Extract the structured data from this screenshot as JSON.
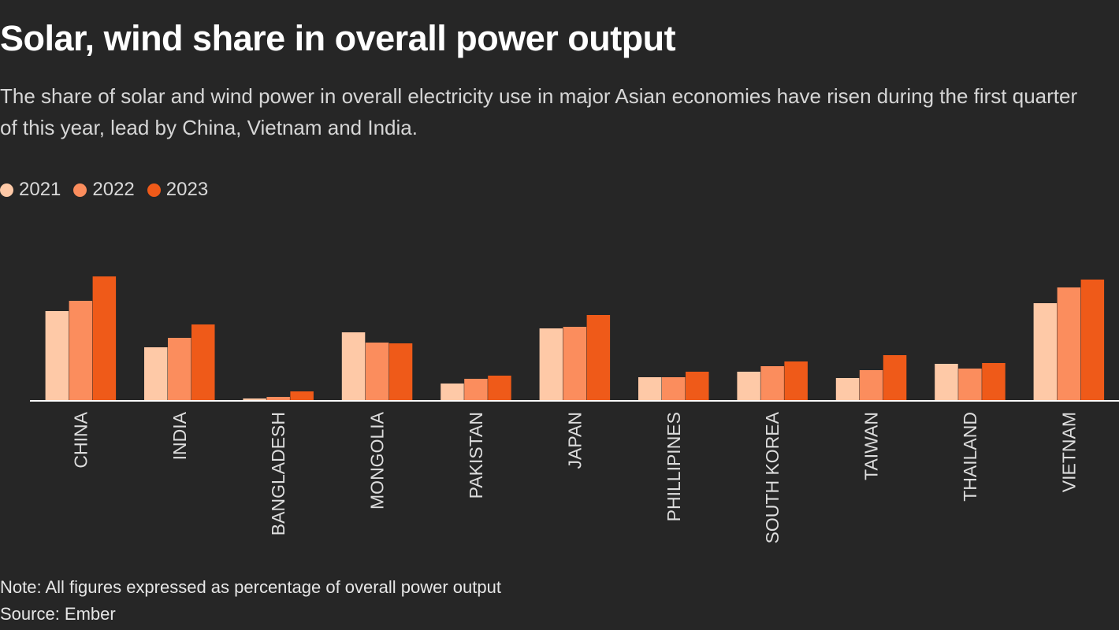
{
  "header": {
    "title": "Solar, wind share in overall power output",
    "subtitle": "The share of solar and wind power in overall electricity use in major Asian economies have risen during the first quarter of this year, lead by China, Vietnam and India."
  },
  "footer": {
    "note": "Note: All figures expressed as percentage of overall power output",
    "source": "Source: Ember"
  },
  "colors": {
    "background": "#262626",
    "2021": "#FEC9A7",
    "2022": "#FB8D5D",
    "2023": "#EF5A19",
    "axis": "#ffffff",
    "tick_label": "#dddddd"
  },
  "chart_data": {
    "type": "bar",
    "categories": [
      "CHINA",
      "INDIA",
      "BANGLADESH",
      "MONGOLIA",
      "PAKISTAN",
      "JAPAN",
      "PHILLIPINES",
      "SOUTH KOREA",
      "TAIWAN",
      "THAILAND",
      "VIETNAM"
    ],
    "series": [
      {
        "name": "2021",
        "values": [
          11.4,
          6.8,
          0.3,
          8.7,
          2.2,
          9.2,
          3.0,
          3.7,
          2.9,
          4.7,
          12.4
        ]
      },
      {
        "name": "2022",
        "values": [
          12.7,
          8.0,
          0.5,
          7.4,
          2.8,
          9.4,
          3.0,
          4.4,
          3.9,
          4.1,
          14.4
        ]
      },
      {
        "name": "2023",
        "values": [
          15.8,
          9.7,
          1.2,
          7.3,
          3.2,
          10.9,
          3.7,
          5.0,
          5.8,
          4.8,
          15.4
        ]
      }
    ],
    "ylim": [
      0,
      16
    ],
    "grid": false,
    "legend_position": "top-left"
  }
}
